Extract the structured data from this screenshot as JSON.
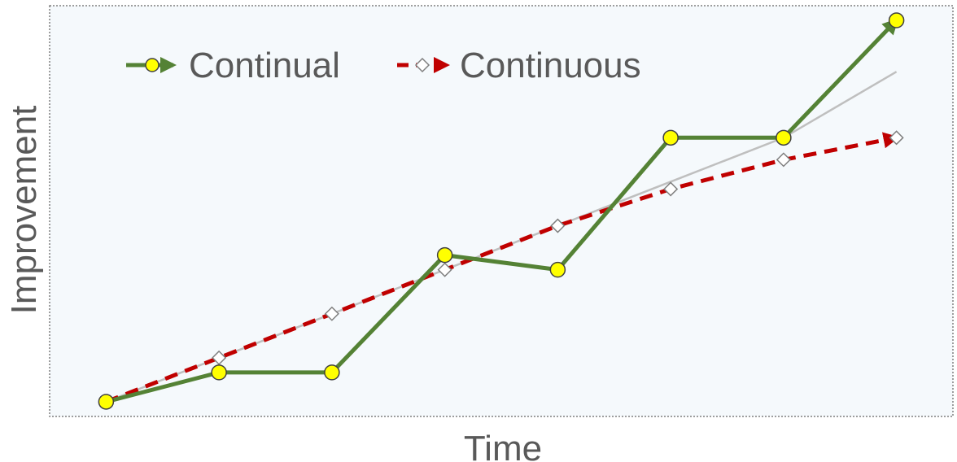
{
  "chart_data": {
    "type": "line",
    "title": "",
    "xlabel": "Time",
    "ylabel": "Improvement",
    "x": [
      0,
      1,
      2,
      3,
      4,
      5,
      6,
      7
    ],
    "xlim": [
      -0.5,
      7.5
    ],
    "ylim": [
      0,
      14
    ],
    "grid": false,
    "legend_position": "top-left",
    "series": [
      {
        "name": "Continual",
        "style": "solid",
        "marker": "circle",
        "color": "#548235",
        "marker_fill": "#ffff00",
        "values": [
          0.5,
          1.5,
          1.5,
          5.5,
          5.0,
          9.5,
          9.5,
          13.5
        ]
      },
      {
        "name": "Continuous",
        "style": "dashed",
        "marker": "diamond",
        "color": "#c00000",
        "marker_fill": "#ffffff",
        "values": [
          0.5,
          2.0,
          3.5,
          5.0,
          6.5,
          7.75,
          8.75,
          9.5
        ]
      },
      {
        "name": "",
        "style": "thin",
        "marker": "none",
        "color": "#bfbfbf",
        "values": [
          0.5,
          2.0,
          3.5,
          5.0,
          6.5,
          8.0,
          9.5,
          11.75
        ]
      }
    ]
  },
  "colors": {
    "plot_background": "#f5f9fc",
    "plot_border": "#7f7f7f",
    "label_text": "#595959"
  }
}
